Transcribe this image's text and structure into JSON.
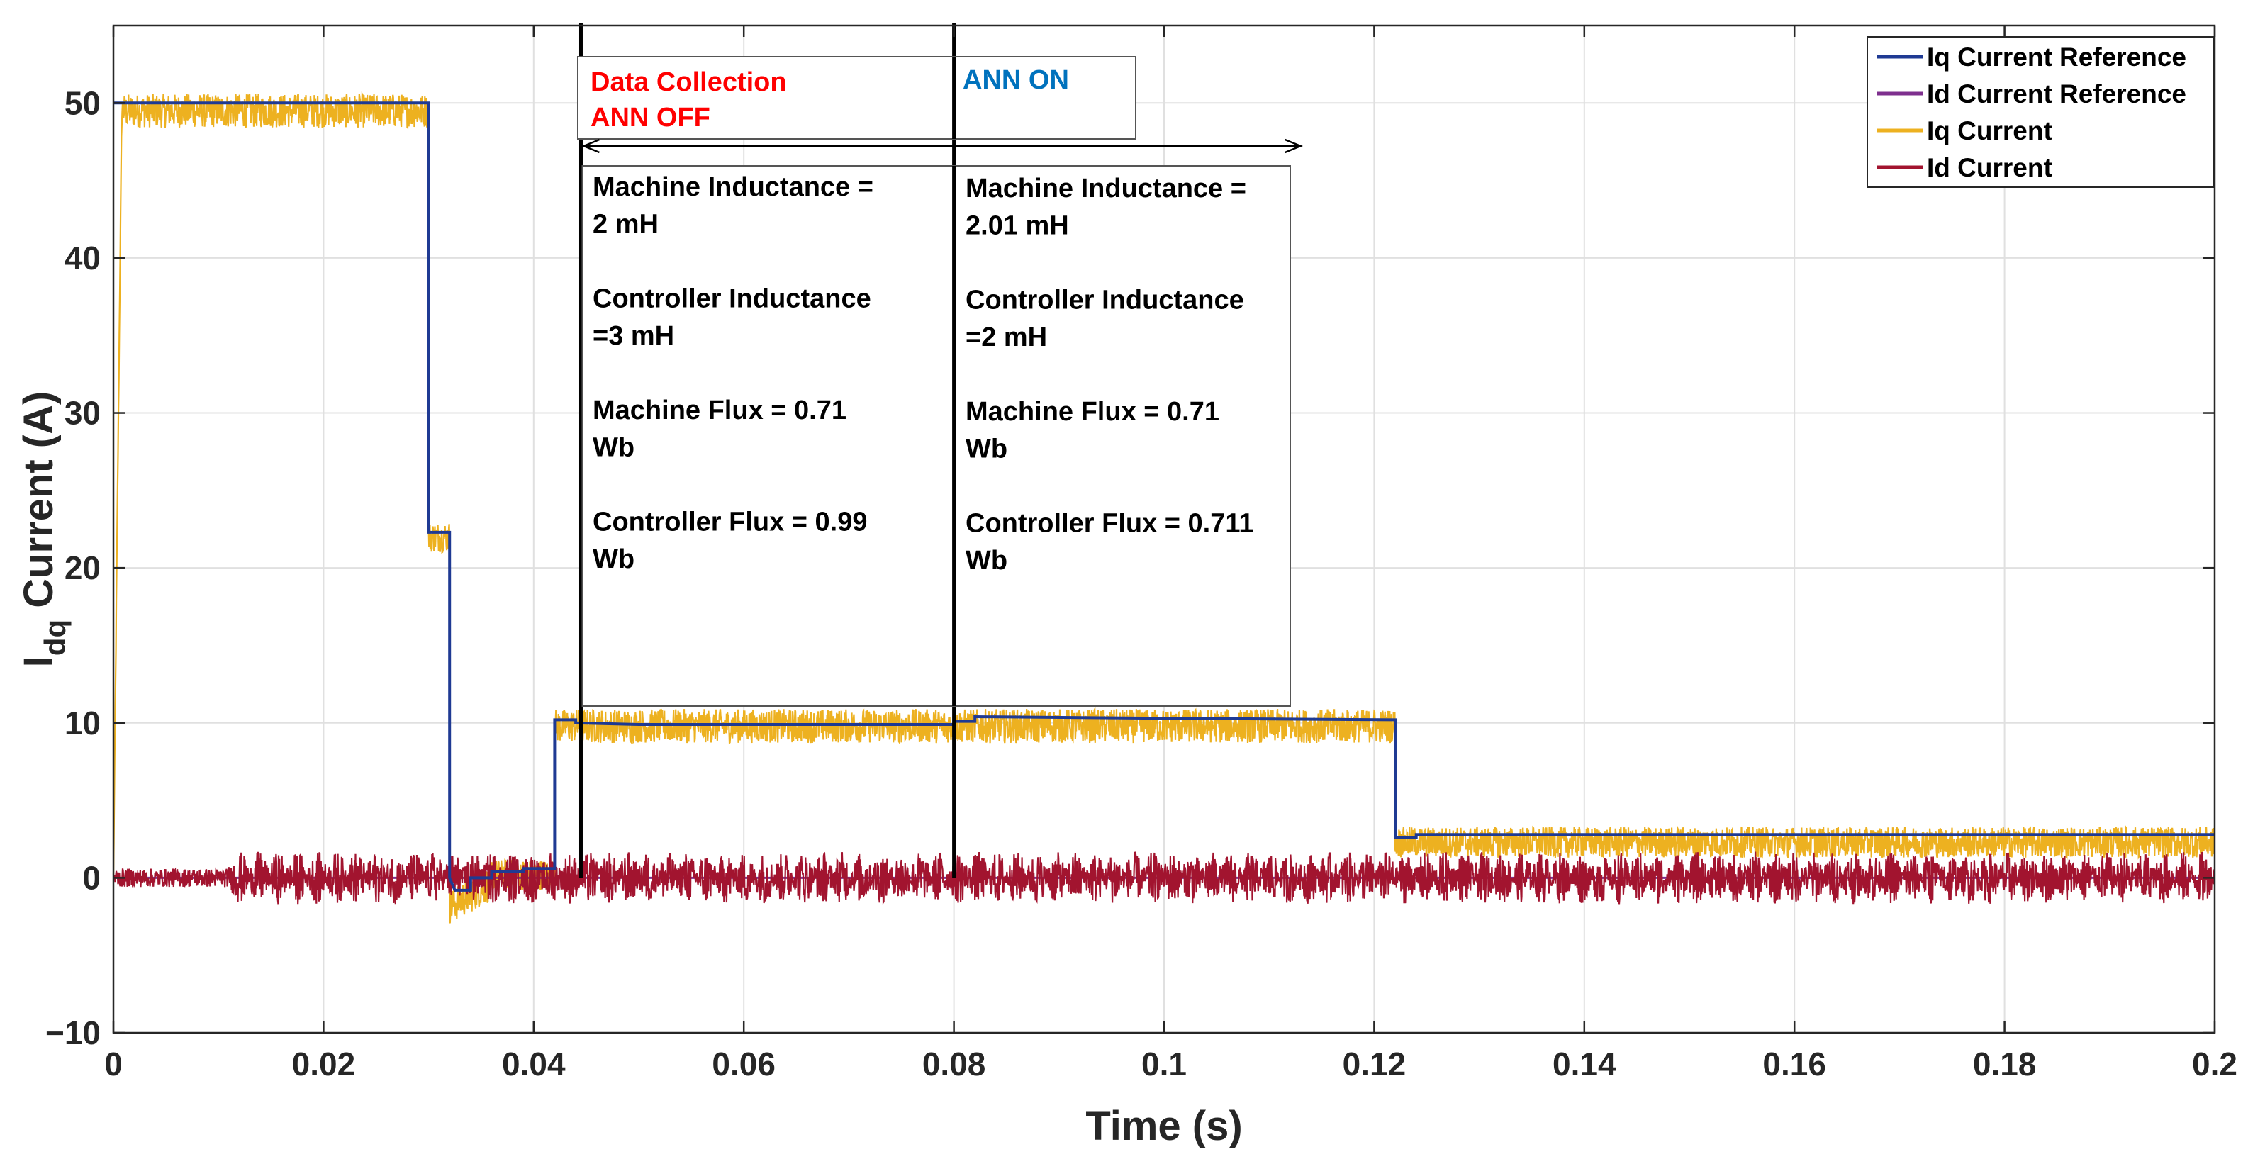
{
  "chart_data": {
    "type": "line",
    "title": "",
    "xlabel": "Time (s)",
    "ylabel_main": "I",
    "ylabel_sub": "dq",
    "ylabel_rest": " Current (A)",
    "xlim": [
      0,
      0.2
    ],
    "ylim": [
      -10,
      55
    ],
    "grid": true,
    "xticks": [
      0,
      0.02,
      0.04,
      0.06,
      0.08,
      0.1,
      0.12,
      0.14,
      0.16,
      0.18,
      0.2
    ],
    "xtick_labels": [
      "0",
      "0.02",
      "0.04",
      "0.06",
      "0.08",
      "0.1",
      "0.12",
      "0.14",
      "0.16",
      "0.18",
      "0.2"
    ],
    "yticks": [
      -10,
      0,
      10,
      20,
      30,
      40,
      50
    ],
    "ytick_labels": [
      "−10",
      "0",
      "10",
      "20",
      "30",
      "40",
      "50"
    ],
    "legend_position": "top-right",
    "series": [
      {
        "name": "Iq Current Reference",
        "color": "#1f3a93",
        "kind": "step",
        "points": [
          [
            0,
            50
          ],
          [
            0.03,
            50
          ],
          [
            0.03,
            22.3
          ],
          [
            0.032,
            22.3
          ],
          [
            0.032,
            0
          ],
          [
            0.0325,
            -0.8
          ],
          [
            0.034,
            -0.8
          ],
          [
            0.034,
            0
          ],
          [
            0.036,
            0
          ],
          [
            0.036,
            0.4
          ],
          [
            0.039,
            0.4
          ],
          [
            0.039,
            0.6
          ],
          [
            0.042,
            0.6
          ],
          [
            0.042,
            10.2
          ],
          [
            0.044,
            10.2
          ],
          [
            0.044,
            10
          ],
          [
            0.05,
            9.9
          ],
          [
            0.08,
            9.9
          ],
          [
            0.08,
            10.1
          ],
          [
            0.082,
            10.1
          ],
          [
            0.082,
            10.4
          ],
          [
            0.1,
            10.3
          ],
          [
            0.122,
            10.2
          ],
          [
            0.122,
            2.6
          ],
          [
            0.124,
            2.6
          ],
          [
            0.124,
            2.8
          ],
          [
            0.2,
            2.8
          ]
        ]
      },
      {
        "name": "Id Current Reference",
        "color": "#7e2f8e",
        "kind": "step",
        "points": [
          [
            0,
            0
          ],
          [
            0.2,
            0
          ]
        ]
      },
      {
        "name": "Iq Current",
        "color": "#edb120",
        "kind": "noisy",
        "segments": [
          {
            "x0": 0,
            "x1": 0.0008,
            "mean_from": 0,
            "mean_to": 50,
            "amp": 0.5
          },
          {
            "x0": 0.0008,
            "x1": 0.03,
            "mean": 49.5,
            "amp": 1.1
          },
          {
            "x0": 0.03,
            "x1": 0.032,
            "mean": 22,
            "amp": 1.0
          },
          {
            "x0": 0.032,
            "x1": 0.036,
            "mean_from": -1.8,
            "mean_to": -0.3,
            "amp": 1.2
          },
          {
            "x0": 0.036,
            "x1": 0.042,
            "mean": 0.2,
            "amp": 1.0
          },
          {
            "x0": 0.042,
            "x1": 0.122,
            "mean": 9.8,
            "amp": 1.1
          },
          {
            "x0": 0.122,
            "x1": 0.2,
            "mean": 2.3,
            "amp": 1.0
          }
        ]
      },
      {
        "name": "Id Current",
        "color": "#a2142f",
        "kind": "noisy_pulsed",
        "segments": [
          {
            "x0": 0,
            "x1": 0.011,
            "mean": 0,
            "amp": 0.6
          },
          {
            "x0": 0.011,
            "x1": 0.2,
            "mean": 0,
            "amp": 1.7
          }
        ]
      }
    ],
    "vertical_markers": [
      0.0445,
      0.08
    ],
    "annotations": {
      "phase1_line1": "Data Collection",
      "phase1_line2": "ANN OFF",
      "phase1_color": "#ff0000",
      "phase2_label": "ANN ON",
      "phase2_color": "#0072bd",
      "box1_lines": [
        "Machine Inductance =",
        "2 mH",
        "",
        "Controller Inductance",
        "=3 mH",
        "",
        "Machine Flux = 0.71",
        "Wb",
        "",
        "Controller Flux = 0.99",
        "Wb"
      ],
      "box2_lines": [
        "Machine Inductance =",
        "2.01 mH",
        "",
        "Controller Inductance",
        "=2 mH",
        "",
        "Machine Flux = 0.71",
        "Wb",
        "",
        "Controller Flux = 0.711",
        "Wb"
      ]
    }
  }
}
